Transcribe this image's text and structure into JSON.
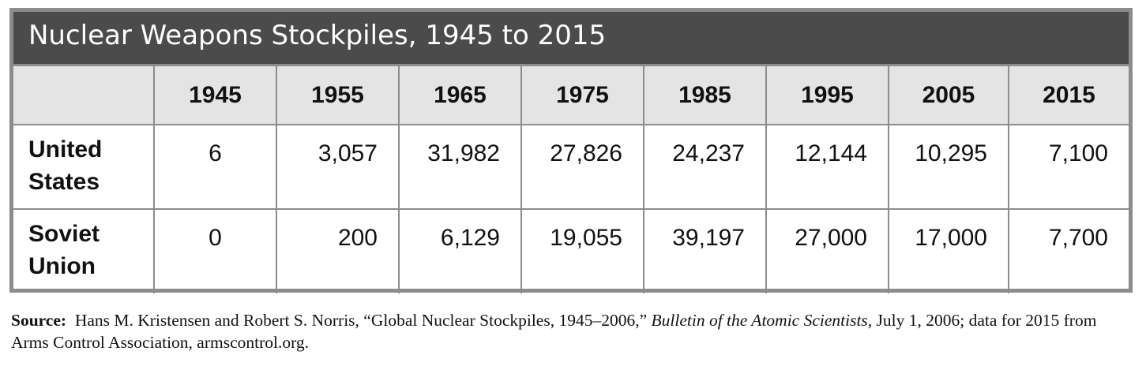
{
  "chart_data": {
    "type": "table",
    "title": "Nuclear Weapons Stockpiles, 1945 to 2015",
    "columns": [
      "1945",
      "1955",
      "1965",
      "1975",
      "1985",
      "1995",
      "2005",
      "2015"
    ],
    "rows": [
      {
        "label_line1": "United",
        "label_line2": "States",
        "values": [
          "6",
          "3,057",
          "31,982",
          "27,826",
          "24,237",
          "12,144",
          "10,295",
          "7,100"
        ]
      },
      {
        "label_line1": "Soviet",
        "label_line2": "Union",
        "values": [
          "0",
          "200",
          "6,129",
          "19,055",
          "39,197",
          "27,000",
          "17,000",
          "7,700"
        ]
      }
    ]
  },
  "source": {
    "label": "Source:",
    "text_before": "Hans M. Kristensen and Robert S. Norris, “Global Nuclear Stockpiles, 1945–2006,”",
    "journal": "Bulletin of the Atomic Scientists",
    "text_after": ", July 1, 2006; data for 2015 from Arms Control Association, armscontrol.org."
  },
  "colors": {
    "title_bar": "#4b4b4c",
    "header_row": "#e4e4e5",
    "border": "#8c8c8c"
  }
}
